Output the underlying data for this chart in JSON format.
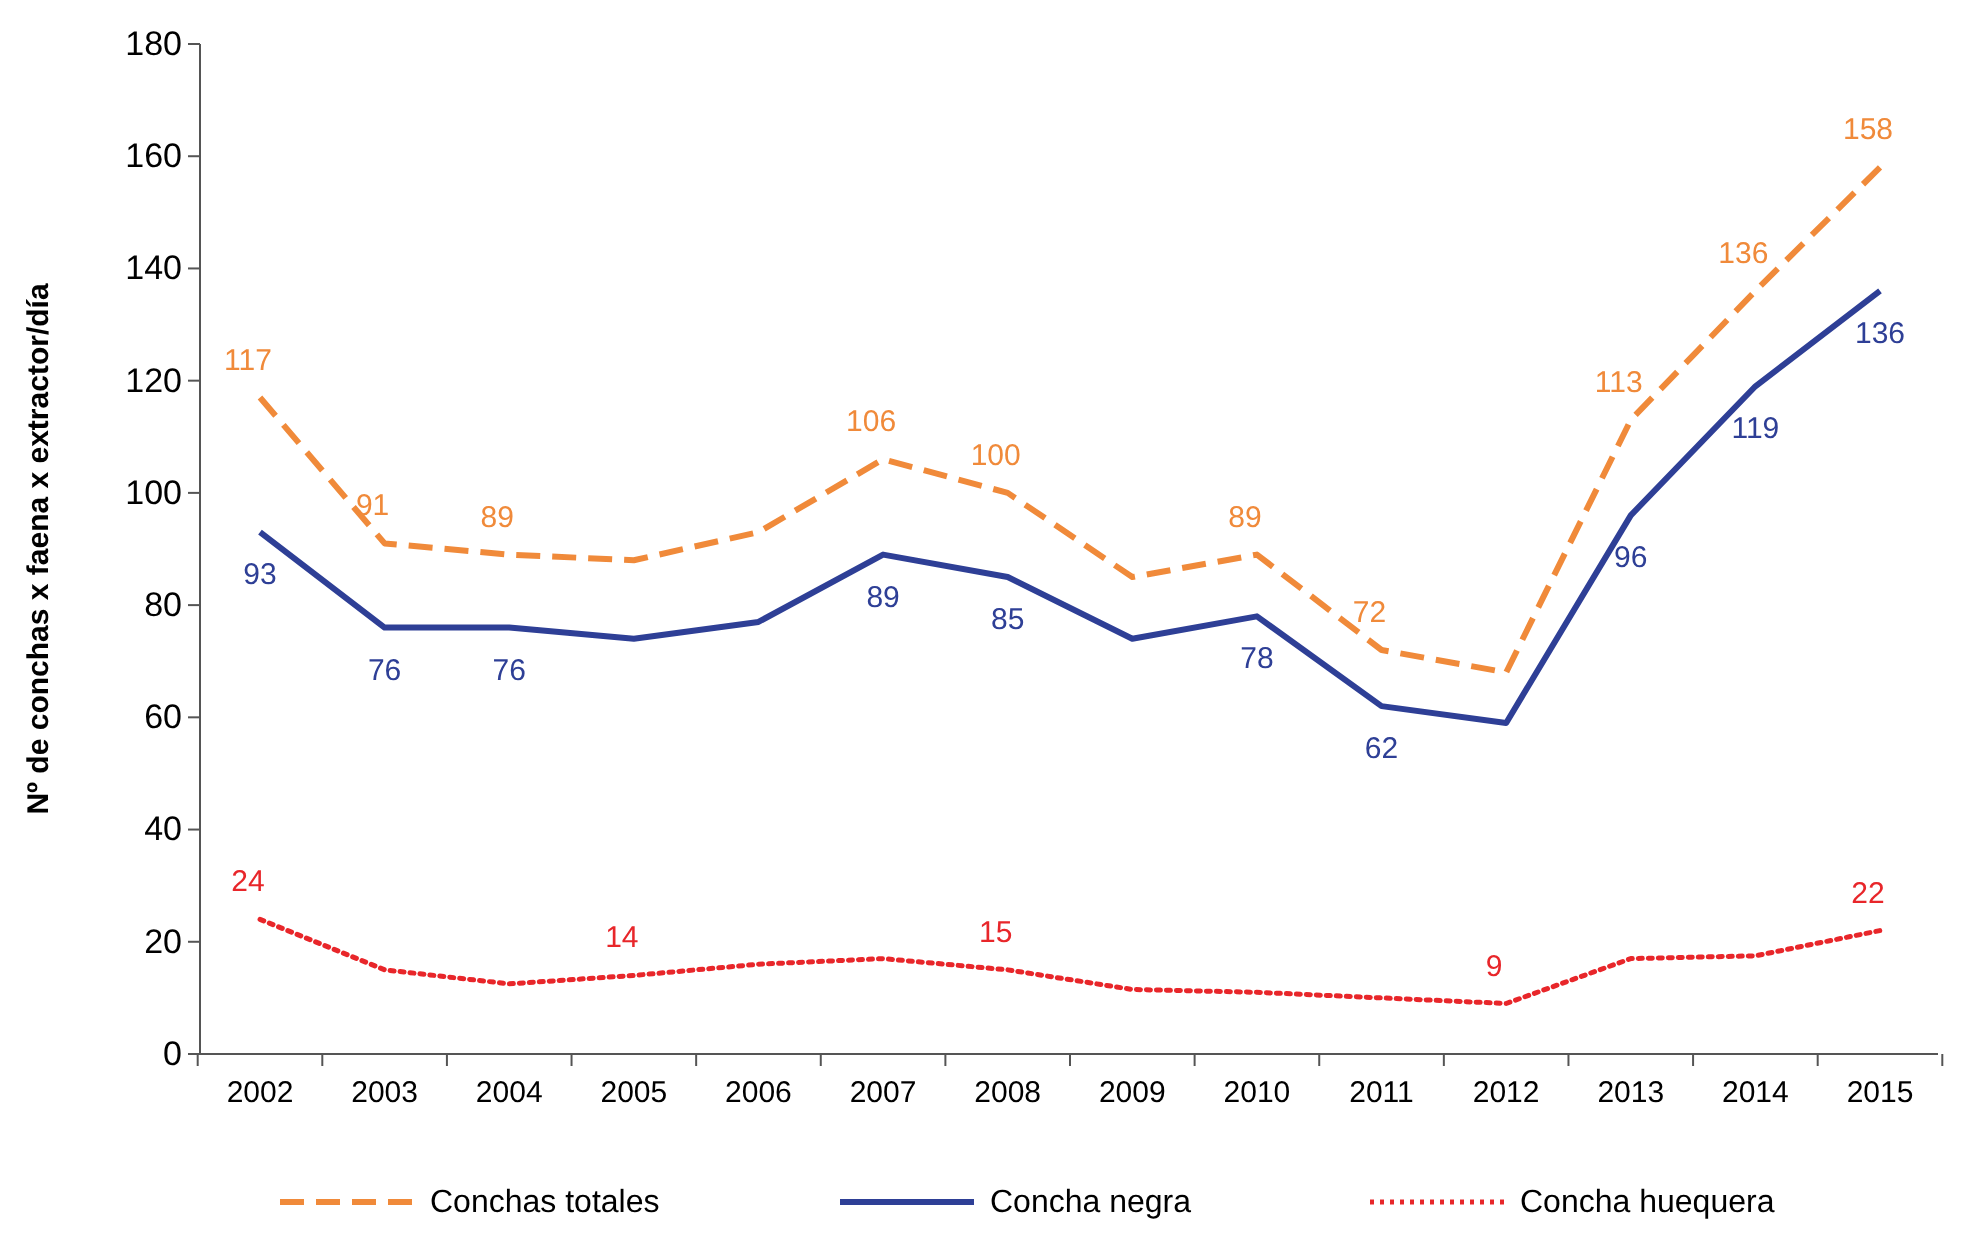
{
  "chart_data": {
    "type": "line",
    "ylabel": "Nº de conchas x faena x extractor/día",
    "categories": [
      "2002",
      "2003",
      "2004",
      "2005",
      "2006",
      "2007",
      "2008",
      "2009",
      "2010",
      "2011",
      "2012",
      "2013",
      "2014",
      "2015"
    ],
    "ylim": [
      0,
      180
    ],
    "yticks": [
      0,
      20,
      40,
      60,
      80,
      100,
      120,
      140,
      160,
      180
    ],
    "grid": false,
    "legend": "bottom",
    "marker": "none",
    "series": [
      {
        "name": "Conchas totales",
        "color": "#f08a3a",
        "line_style": "dashed",
        "values": [
          117,
          91,
          89,
          88,
          93,
          106,
          100,
          85,
          89,
          72,
          68,
          113,
          136,
          158
        ],
        "value_labels": [
          "117",
          "91",
          "89",
          null,
          null,
          "106",
          "100",
          null,
          "89",
          "72",
          null,
          "113",
          "136",
          "158"
        ]
      },
      {
        "name": "Concha negra",
        "color": "#2e3f96",
        "line_style": "solid",
        "values": [
          93,
          76,
          76,
          74,
          77,
          89,
          85,
          74,
          78,
          62,
          59,
          96,
          119,
          136
        ],
        "value_labels": [
          "93",
          "76",
          "76",
          null,
          null,
          "89",
          "85",
          null,
          "78",
          "62",
          null,
          "96",
          "119",
          "136"
        ]
      },
      {
        "name": "Concha huequera",
        "color": "#e8262a",
        "line_style": "dotted",
        "values": [
          24,
          15,
          12.5,
          14,
          16,
          17,
          15,
          11.5,
          11,
          10,
          9,
          17,
          17.5,
          22
        ],
        "value_labels": [
          "24",
          null,
          null,
          "14",
          null,
          null,
          "15",
          null,
          null,
          null,
          "9",
          null,
          null,
          "22"
        ]
      }
    ]
  }
}
